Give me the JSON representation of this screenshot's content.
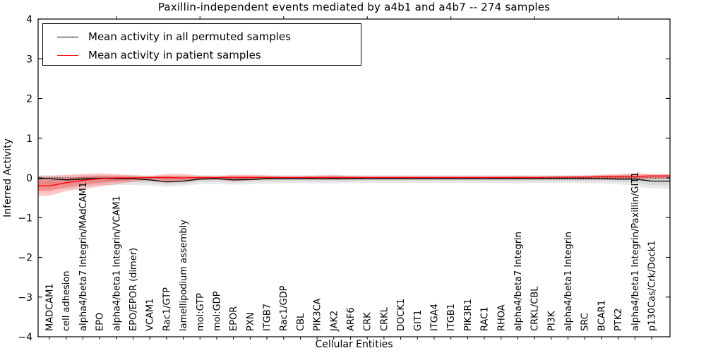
{
  "figure": {
    "title": "Paxillin-independent events mediated by a4b1 and a4b7 -- 274 samples",
    "xlabel": "Cellular Entities",
    "ylabel": "Inferred Activity"
  },
  "legend": {
    "items": [
      {
        "label": "Mean activity in all permuted samples",
        "color": "#000000"
      },
      {
        "label": "Mean activity in patient samples",
        "color": "#ff0000"
      }
    ],
    "position": "upper left"
  },
  "chart_data": {
    "type": "line",
    "title": "Paxillin-independent events mediated by a4b1 and a4b7 -- 274 samples",
    "xlabel": "Cellular Entities",
    "ylabel": "Inferred Activity",
    "ylim": [
      -4,
      4
    ],
    "yticks": [
      -4,
      -3,
      -2,
      -1,
      0,
      1,
      2,
      3,
      4
    ],
    "ytick_labels": [
      "−4",
      "−3",
      "−2",
      "−1",
      "0",
      "1",
      "2",
      "3",
      "4"
    ],
    "grid": false,
    "legend_position": "upper left",
    "zero_line": {
      "style": "dotted",
      "color": "#000000",
      "y": 0
    },
    "categories": [
      "MADCAM1",
      "cell adhesion",
      "alpha4/beta7 Integrin/MAdCAM1",
      "EPO",
      "alpha4/beta1 Integrin/VCAM1",
      "EPO/EPOR (dimer)",
      "VCAM1",
      "Rac1/GTP",
      "lamellipodium assembly",
      "mol:GTP",
      "mol:GDP",
      "EPOR",
      "PXN",
      "ITGB7",
      "Rac1/GDP",
      "CBL",
      "PIK3CA",
      "JAK2",
      "ARF6",
      "CRK",
      "CRKL",
      "DOCK1",
      "GIT1",
      "ITGA4",
      "ITGB1",
      "PIK3R1",
      "RAC1",
      "RHOA",
      "alpha4/beta7 Integrin",
      "CRKL/CBL",
      "PI3K",
      "alpha4/beta1 Integrin",
      "SRC",
      "BCAR1",
      "PTK2",
      "alpha4/beta1 Integrin/Paxillin/GIT1",
      "p130Cas/Crk/Dock1"
    ],
    "series": [
      {
        "name": "Mean activity in all permuted samples",
        "color": "#000000",
        "band_color": "#9a9a9a",
        "band_opacity": 0.22,
        "values": [
          -0.02,
          -0.05,
          -0.03,
          -0.01,
          -0.02,
          -0.02,
          -0.05,
          -0.1,
          -0.08,
          -0.03,
          -0.02,
          -0.05,
          -0.04,
          -0.02,
          -0.02,
          -0.02,
          -0.02,
          -0.02,
          -0.02,
          -0.02,
          -0.02,
          -0.02,
          -0.02,
          -0.02,
          -0.02,
          -0.02,
          -0.02,
          -0.02,
          -0.02,
          -0.02,
          -0.02,
          -0.02,
          -0.02,
          -0.02,
          -0.03,
          -0.03,
          -0.08
        ],
        "band_top": [
          0.07,
          0.06,
          0.08,
          0.08,
          0.07,
          0.07,
          0.06,
          0.05,
          0.06,
          0.07,
          0.07,
          0.06,
          0.06,
          0.07,
          0.07,
          0.07,
          0.07,
          0.07,
          0.07,
          0.07,
          0.07,
          0.07,
          0.07,
          0.07,
          0.07,
          0.07,
          0.07,
          0.07,
          0.07,
          0.07,
          0.07,
          0.07,
          0.07,
          0.07,
          0.07,
          0.06,
          0.05
        ],
        "band_bottom": [
          -0.3,
          -0.28,
          -0.22,
          -0.18,
          -0.18,
          -0.18,
          -0.19,
          -0.23,
          -0.2,
          -0.16,
          -0.15,
          -0.17,
          -0.16,
          -0.14,
          -0.14,
          -0.13,
          -0.14,
          -0.14,
          -0.13,
          -0.13,
          -0.13,
          -0.13,
          -0.13,
          -0.13,
          -0.13,
          -0.13,
          -0.13,
          -0.13,
          -0.14,
          -0.13,
          -0.13,
          -0.13,
          -0.14,
          -0.14,
          -0.16,
          -0.2,
          -0.27
        ]
      },
      {
        "name": "Mean activity in patient samples",
        "color": "#ff0000",
        "band_color": "#ff1a1a",
        "band_opacity": 0.24,
        "values": [
          -0.2,
          -0.12,
          -0.06,
          -0.02,
          0.0,
          0.0,
          0.01,
          0.01,
          0.0,
          0.01,
          0.01,
          0.01,
          0.01,
          0.01,
          0.01,
          0.01,
          0.01,
          0.01,
          0.01,
          0.01,
          0.01,
          0.01,
          0.01,
          0.01,
          0.01,
          0.01,
          0.01,
          0.01,
          0.01,
          0.01,
          0.02,
          0.02,
          0.02,
          0.03,
          0.03,
          0.04,
          0.05
        ],
        "band_top": [
          0.05,
          0.08,
          0.1,
          0.12,
          0.1,
          0.07,
          0.05,
          0.1,
          0.1,
          0.05,
          0.04,
          0.08,
          0.08,
          0.06,
          0.04,
          0.04,
          0.06,
          0.07,
          0.05,
          0.04,
          0.04,
          0.04,
          0.04,
          0.04,
          0.04,
          0.04,
          0.04,
          0.04,
          0.05,
          0.04,
          0.04,
          0.05,
          0.06,
          0.08,
          0.1,
          0.12,
          0.1
        ],
        "band_bottom": [
          -0.45,
          -0.33,
          -0.28,
          -0.22,
          -0.16,
          -0.1,
          -0.06,
          -0.12,
          -0.1,
          -0.05,
          -0.04,
          -0.08,
          -0.06,
          -0.04,
          -0.03,
          -0.03,
          -0.04,
          -0.05,
          -0.04,
          -0.03,
          -0.03,
          -0.03,
          -0.03,
          -0.03,
          -0.03,
          -0.03,
          -0.03,
          -0.03,
          -0.03,
          -0.03,
          -0.03,
          -0.03,
          -0.03,
          -0.04,
          -0.05,
          -0.05,
          -0.03
        ]
      }
    ]
  }
}
